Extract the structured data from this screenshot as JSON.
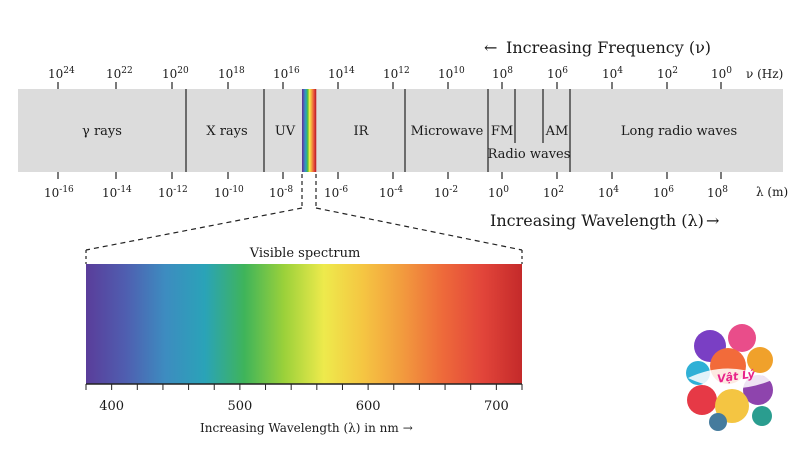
{
  "top_axis": {
    "arrow_glyph": "←",
    "title": "Increasing Frequency (ν)",
    "unit": "ν (Hz)",
    "tick_labels": [
      {
        "base": "10",
        "exp": "24"
      },
      {
        "base": "10",
        "exp": "22"
      },
      {
        "base": "10",
        "exp": "20"
      },
      {
        "base": "10",
        "exp": "18"
      },
      {
        "base": "10",
        "exp": "16"
      },
      {
        "base": "10",
        "exp": "14"
      },
      {
        "base": "10",
        "exp": "12"
      },
      {
        "base": "10",
        "exp": "10"
      },
      {
        "base": "10",
        "exp": "8"
      },
      {
        "base": "10",
        "exp": "6"
      },
      {
        "base": "10",
        "exp": "4"
      },
      {
        "base": "10",
        "exp": "2"
      },
      {
        "base": "10",
        "exp": "0"
      }
    ]
  },
  "bottom_axis": {
    "title": "Increasing Wavelength (λ)",
    "arrow_glyph": "→",
    "unit": "λ (m)",
    "tick_labels": [
      {
        "base": "10",
        "exp": "-16"
      },
      {
        "base": "10",
        "exp": "-14"
      },
      {
        "base": "10",
        "exp": "-12"
      },
      {
        "base": "10",
        "exp": "-10"
      },
      {
        "base": "10",
        "exp": "-8"
      },
      {
        "base": "10",
        "exp": "-6"
      },
      {
        "base": "10",
        "exp": "-4"
      },
      {
        "base": "10",
        "exp": "-2"
      },
      {
        "base": "10",
        "exp": "0"
      },
      {
        "base": "10",
        "exp": "2"
      },
      {
        "base": "10",
        "exp": "4"
      },
      {
        "base": "10",
        "exp": "6"
      },
      {
        "base": "10",
        "exp": "8"
      }
    ]
  },
  "bands": [
    {
      "label": "γ rays"
    },
    {
      "label": "X rays"
    },
    {
      "label": "UV"
    },
    {
      "label": "IR"
    },
    {
      "label": "Microwave"
    },
    {
      "label": "FM"
    },
    {
      "label": "AM"
    },
    {
      "label": "Long radio waves"
    }
  ],
  "radio_waves_label": "Radio waves",
  "visible": {
    "title": "Visible spectrum",
    "tick_labels": [
      "400",
      "500",
      "600",
      "700"
    ],
    "axis_title": "Increasing Wavelength (λ) in nm",
    "axis_arrow": "→"
  },
  "logo": {
    "text": "Vật Lý"
  },
  "colors": {
    "band_fill": "#dcdcdc",
    "spectrum": [
      "#5a3d9a",
      "#4f5eb0",
      "#3d8cc0",
      "#2aa3b8",
      "#3fb45a",
      "#9bd13a",
      "#eeea4c",
      "#f5c542",
      "#f29a3e",
      "#ee6a3a",
      "#e2453a",
      "#c42a2a"
    ]
  }
}
